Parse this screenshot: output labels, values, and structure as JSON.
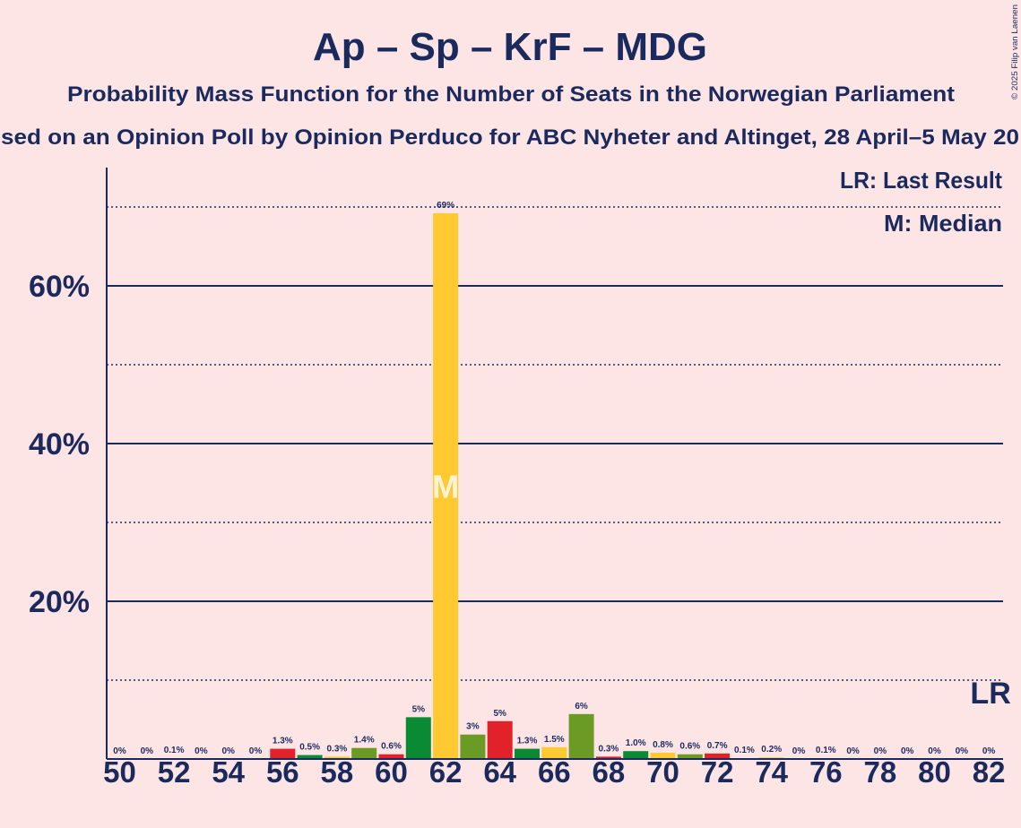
{
  "copyright": "© 2025 Filip van Laenen",
  "colors": {
    "background": "#fde5e6",
    "text": "#1b2a5c",
    "party_cycle": [
      "#e2222a",
      "#0a8a33",
      "#ffc931",
      "#6b9a25"
    ],
    "median_label": "#fff3d6"
  },
  "chart_data": {
    "type": "bar",
    "title": "Ap – Sp – KrF – MDG",
    "subtitle": "Probability Mass Function for the Number of Seats in the Norwegian Parliament",
    "source_line": "sed on an Opinion Poll by Opinion Perduco for ABC Nyheter and Altinget, 28 April–5 May 20",
    "legend": [
      "LR: Last Result",
      "M: Median"
    ],
    "xlabel": "",
    "ylabel": "",
    "x": [
      50,
      51,
      52,
      53,
      54,
      55,
      56,
      57,
      58,
      59,
      60,
      61,
      62,
      63,
      64,
      65,
      66,
      67,
      68,
      69,
      70,
      71,
      72,
      73,
      74,
      75,
      76,
      77,
      78,
      79,
      80,
      81,
      82
    ],
    "values": [
      0,
      0,
      0.1,
      0,
      0,
      0,
      1.3,
      0.5,
      0.3,
      1.4,
      0.6,
      5.3,
      69.2,
      3.1,
      4.8,
      1.3,
      1.5,
      5.7,
      0.3,
      1.0,
      0.8,
      0.6,
      0.7,
      0.1,
      0.2,
      0,
      0.1,
      0,
      0,
      0,
      0,
      0,
      0
    ],
    "value_labels": [
      "0%",
      "0%",
      "0.1%",
      "0%",
      "0%",
      "0%",
      "1.3%",
      "0.5%",
      "0.3%",
      "1.4%",
      "0.6%",
      "5%",
      "69%",
      "3%",
      "5%",
      "1.3%",
      "1.5%",
      "6%",
      "0.3%",
      "1.0%",
      "0.8%",
      "0.6%",
      "0.7%",
      "0.1%",
      "0.2%",
      "0%",
      "0.1%",
      "0%",
      "0%",
      "0%",
      "0%",
      "0%",
      "0%"
    ],
    "xticks": [
      50,
      52,
      54,
      56,
      58,
      60,
      62,
      64,
      66,
      68,
      70,
      72,
      74,
      76,
      78,
      80,
      82
    ],
    "yticks": [
      20,
      40,
      60
    ],
    "ytick_labels": [
      "20%",
      "40%",
      "60%"
    ],
    "minor_gridlines": [
      10,
      30,
      50,
      70
    ],
    "xlim": [
      50,
      82
    ],
    "ylim": [
      0,
      75
    ],
    "median": 62,
    "median_label": "M",
    "last_result": 82,
    "last_result_label": "LR"
  }
}
